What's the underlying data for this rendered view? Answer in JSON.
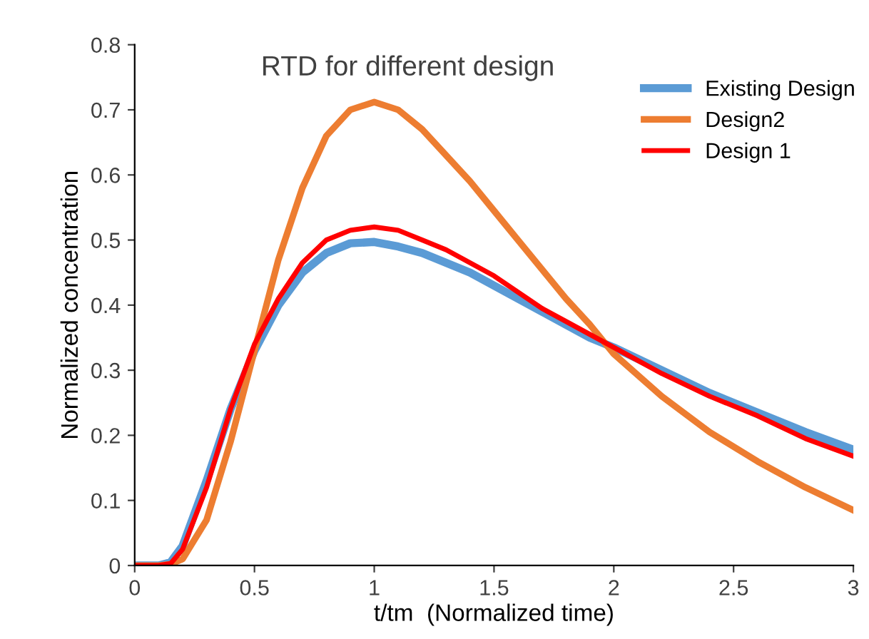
{
  "chart_data": {
    "type": "line",
    "title": "RTD for different design",
    "xlabel": "t/tm  (Normalized time)",
    "ylabel": "Normalized concentration",
    "x": [
      0,
      0.1,
      0.15,
      0.2,
      0.3,
      0.4,
      0.5,
      0.6,
      0.7,
      0.8,
      0.9,
      1.0,
      1.1,
      1.2,
      1.3,
      1.4,
      1.5,
      1.6,
      1.7,
      1.8,
      1.9,
      2.0,
      2.2,
      2.4,
      2.6,
      2.8,
      3.0
    ],
    "series": [
      {
        "name": "Existing Design",
        "color": "#5b9bd5",
        "values": [
          0,
          0,
          0.005,
          0.03,
          0.13,
          0.24,
          0.33,
          0.4,
          0.45,
          0.48,
          0.495,
          0.497,
          0.49,
          0.48,
          0.465,
          0.45,
          0.43,
          0.41,
          0.39,
          0.37,
          0.35,
          0.335,
          0.3,
          0.265,
          0.235,
          0.205,
          0.178
        ]
      },
      {
        "name": "Design2",
        "color": "#ed7d31",
        "values": [
          0,
          0,
          0.002,
          0.01,
          0.07,
          0.19,
          0.33,
          0.47,
          0.58,
          0.66,
          0.7,
          0.712,
          0.7,
          0.67,
          0.63,
          0.59,
          0.545,
          0.5,
          0.455,
          0.41,
          0.37,
          0.325,
          0.26,
          0.205,
          0.16,
          0.12,
          0.085
        ]
      },
      {
        "name": "Design 1",
        "color": "#ff0000",
        "values": [
          0,
          0,
          0.003,
          0.025,
          0.12,
          0.24,
          0.34,
          0.41,
          0.465,
          0.5,
          0.515,
          0.52,
          0.515,
          0.5,
          0.485,
          0.465,
          0.445,
          0.42,
          0.395,
          0.375,
          0.355,
          0.335,
          0.295,
          0.26,
          0.23,
          0.195,
          0.168
        ]
      }
    ],
    "xlim": [
      0,
      3
    ],
    "xticks": [
      0,
      0.5,
      1,
      1.5,
      2,
      2.5,
      3
    ],
    "ylim": [
      0,
      0.8
    ],
    "yticks": [
      0,
      0.1,
      0.2,
      0.3,
      0.4,
      0.5,
      0.6,
      0.7,
      0.8
    ],
    "grid": false,
    "legend": "top right",
    "marker": "none",
    "line_style": "solid"
  }
}
